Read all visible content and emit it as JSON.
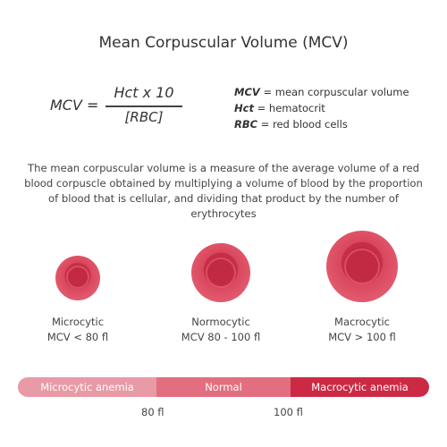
{
  "title": "Mean Corpuscular Volume (MCV)",
  "formula": {
    "lhs": "MCV =",
    "numerator": "Hct x 10",
    "denominator": "[RBC]"
  },
  "legend": [
    {
      "abbr": "MCV",
      "text": " = mean corpuscular volume"
    },
    {
      "abbr": "Hct",
      "text": " = hematocrit"
    },
    {
      "abbr": "RBC",
      "text": " = red blood cells"
    }
  ],
  "description": "The mean corpuscular volume is a measure of the average volume of a red blood corpuscle obtained by multiplying a volume of blood by the proportion of blood that is cellular, and dividing that product by the number of erythrocytes",
  "cells": [
    {
      "name": "Microcytic",
      "range": "MCV < 80 fl"
    },
    {
      "name": "Normocytic",
      "range": "MCV 80 - 100 fl"
    },
    {
      "name": "Macrocytic",
      "range": "MCV > 100 fl"
    }
  ],
  "scale": {
    "segments": [
      "Microcytic anemia",
      "Normal",
      "Macrocytic anemia"
    ],
    "ticks": [
      "80 fl",
      "100 fl"
    ]
  },
  "colors": {
    "cell": "#d9475d",
    "micro": "#e89aa6",
    "normal": "#e36e80",
    "macro": "#cc2a44"
  }
}
